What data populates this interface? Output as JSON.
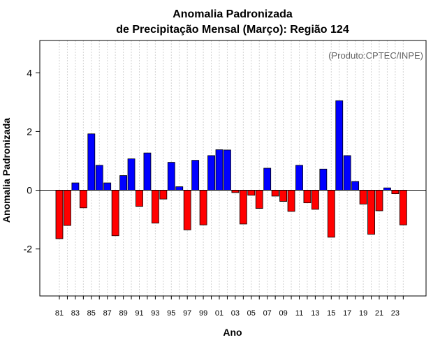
{
  "chart_data": {
    "type": "bar",
    "title_line1": "Anomalia Padronizada",
    "title_line2": "de Precipitação Mensal (Março): Região 124",
    "xlabel": "Ano",
    "ylabel": "Anomalia Padronizada",
    "credit": "(Produto:CPTEC/INPE)",
    "ylim": [
      -3.6,
      5.1
    ],
    "yticks": [
      -2,
      0,
      2,
      4
    ],
    "ytick_labels": [
      "-2",
      "0",
      "2",
      "4"
    ],
    "years": [
      1981,
      1982,
      1983,
      1984,
      1985,
      1986,
      1987,
      1988,
      1989,
      1990,
      1991,
      1992,
      1993,
      1994,
      1995,
      1996,
      1997,
      1998,
      1999,
      2000,
      2001,
      2002,
      2003,
      2004,
      2005,
      2006,
      2007,
      2008,
      2009,
      2010,
      2011,
      2012,
      2013,
      2014,
      2015,
      2016,
      2017,
      2018,
      2019,
      2020,
      2021,
      2022,
      2023,
      2024
    ],
    "xtick_labels": [
      "81",
      "83",
      "85",
      "87",
      "89",
      "91",
      "93",
      "95",
      "97",
      "99",
      "01",
      "03",
      "05",
      "07",
      "09",
      "11",
      "13",
      "15",
      "17",
      "19",
      "21",
      "23"
    ],
    "values": [
      -1.65,
      -1.2,
      0.25,
      -0.6,
      1.92,
      0.85,
      0.25,
      -1.55,
      0.5,
      1.07,
      -0.55,
      1.27,
      -1.12,
      -0.3,
      0.95,
      0.12,
      -1.35,
      1.02,
      -1.18,
      1.18,
      1.38,
      1.37,
      -0.08,
      -1.15,
      -0.17,
      -0.62,
      0.75,
      -0.2,
      -0.38,
      -0.72,
      0.85,
      -0.43,
      -0.65,
      0.72,
      -1.6,
      3.05,
      1.18,
      0.3,
      -0.47,
      -1.5,
      -0.7,
      0.08,
      -0.12,
      -1.18
    ],
    "colors": {
      "positive": "#0000ff",
      "negative": "#ff0000",
      "grid": "#d3d3d3",
      "frame": "#000000",
      "credit": "#666666"
    },
    "grid": "vertical dotted"
  }
}
